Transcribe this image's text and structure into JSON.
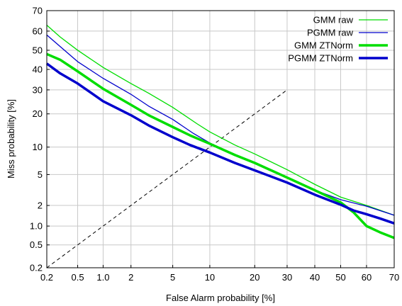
{
  "chart_data": {
    "type": "line",
    "title": "",
    "xlabel": "False Alarm probability [%]",
    "ylabel": "Miss probability [%]",
    "x_scale": "probit",
    "y_scale": "probit",
    "xlim": [
      0.2,
      70
    ],
    "ylim": [
      0.2,
      70
    ],
    "x_ticks": [
      0.2,
      0.5,
      1.0,
      2,
      5,
      10,
      20,
      30,
      40,
      50,
      60,
      70
    ],
    "x_tick_labels": [
      "0.2",
      "0.5",
      "1.0",
      "2",
      "5",
      "10",
      "20",
      "30",
      "40",
      "50",
      "60",
      "70"
    ],
    "y_ticks": [
      0.2,
      0.5,
      1.0,
      2,
      5,
      10,
      20,
      30,
      40,
      50,
      60,
      70
    ],
    "y_tick_labels": [
      "0.2",
      "0.5",
      "1.0",
      "2",
      "5",
      "10",
      "20",
      "30",
      "40",
      "50",
      "60",
      "70"
    ],
    "grid": true,
    "legend_position": "top-right",
    "reference_line": {
      "style": "dashed",
      "x": [
        0.2,
        30
      ],
      "y": [
        0.2,
        30
      ]
    },
    "series": [
      {
        "name": "GMM raw",
        "color": "#00dd00",
        "weight": "thin",
        "x": [
          0.2,
          0.3,
          0.5,
          1.0,
          2,
          3,
          5,
          8,
          10,
          15,
          20,
          30,
          40,
          50,
          60,
          70
        ],
        "y": [
          63,
          57,
          50,
          41,
          33,
          28.5,
          22.5,
          16.5,
          14,
          10.5,
          8.5,
          5.7,
          3.8,
          2.6,
          2.0,
          1.45
        ]
      },
      {
        "name": "PGMM raw",
        "color": "#0000cc",
        "weight": "thin",
        "x": [
          0.2,
          0.3,
          0.5,
          1.0,
          2,
          3,
          5,
          7.5,
          10,
          15,
          20,
          30,
          40,
          50,
          60,
          70
        ],
        "y": [
          58,
          52,
          44,
          35.5,
          28,
          23,
          18,
          13.5,
          11,
          8.3,
          6.8,
          4.6,
          3.2,
          2.4,
          1.95,
          1.45
        ]
      },
      {
        "name": "GMM ZTNorm",
        "color": "#00dd00",
        "weight": "thick",
        "x": [
          0.2,
          0.3,
          0.5,
          1.0,
          2,
          3,
          5,
          7,
          10,
          15,
          20,
          30,
          40,
          50,
          55,
          60,
          65,
          70
        ],
        "y": [
          48,
          45,
          39,
          30.5,
          23.5,
          19.5,
          15.5,
          13,
          10.8,
          8.3,
          6.8,
          4.6,
          3.2,
          2.2,
          1.6,
          1.0,
          0.8,
          0.65
        ]
      },
      {
        "name": "PGMM ZTNorm",
        "color": "#0000cc",
        "weight": "thick",
        "x": [
          0.2,
          0.3,
          0.5,
          1.0,
          2,
          3,
          5,
          7,
          10,
          15,
          20,
          30,
          40,
          50,
          55,
          60,
          65,
          70
        ],
        "y": [
          43,
          38,
          33,
          25,
          19.5,
          16,
          12.5,
          10.5,
          8.8,
          6.8,
          5.6,
          4.0,
          2.8,
          2.05,
          1.7,
          1.5,
          1.3,
          1.1
        ]
      }
    ]
  }
}
